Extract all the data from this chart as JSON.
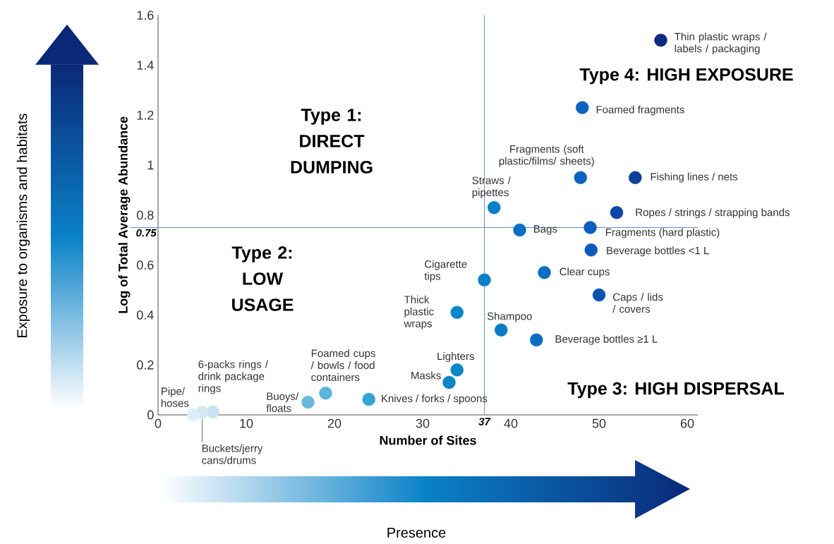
{
  "chart_data": {
    "type": "scatter",
    "xlabel": "Number of Sites",
    "ylabel": "Log of Total Average Abundance",
    "x": [
      57,
      48.1,
      47.9,
      54.1,
      52,
      38.1,
      41,
      49,
      49.1,
      43.8,
      37,
      50,
      33.9,
      38.9,
      42.9,
      33.9,
      33,
      23.9,
      19,
      17,
      6.2,
      5,
      4
    ],
    "values": [
      1.5,
      1.23,
      0.95,
      0.95,
      0.81,
      0.83,
      0.74,
      0.75,
      0.66,
      0.57,
      0.54,
      0.48,
      0.41,
      0.34,
      0.3,
      0.18,
      0.13,
      0.062,
      0.087,
      0.051,
      0.012,
      0.01,
      0.0
    ],
    "colors": [
      "#0c2a80",
      "#0a64c0",
      "#0a64c0",
      "#0b3f9a",
      "#0b47a6",
      "#0b7fc8",
      "#0a6fc4",
      "#0a60bc",
      "#0a5cbc",
      "#0a6fc6",
      "#0a80c8",
      "#0a52b0",
      "#0b86c8",
      "#0a7cc6",
      "#0a6cc2",
      "#0b86c8",
      "#0b86c8",
      "#35a3d4",
      "#5db3dc",
      "#6cb8dd",
      "#c8e1f0",
      "#d3e8f3",
      "#dceef7"
    ],
    "marker": "circle",
    "xlim": [
      0,
      61.2
    ],
    "ylim": [
      0,
      1.6
    ],
    "xticks": [
      0,
      10,
      20,
      30,
      40,
      50,
      60
    ],
    "yticks": [
      0,
      0.2,
      0.4,
      0.6,
      0.8,
      1,
      1.2,
      1.4,
      1.6
    ],
    "ref_lines": [
      {
        "axis": "y",
        "value": 0.75,
        "label": "0.75",
        "color": "#4472c4"
      },
      {
        "axis": "x",
        "value": 37,
        "label": "37",
        "color": "#4472c4"
      }
    ],
    "annotations": [
      {
        "text": "Thin plastic wraps / labels / packaging",
        "x": 57,
        "y": 1.5
      },
      {
        "text": "Foamed fragments",
        "x": 48.1,
        "y": 1.23
      },
      {
        "text": "Fragments (soft plastic/films/ sheets)",
        "x": 47.9,
        "y": 0.95
      },
      {
        "text": "Fishing lines / nets",
        "x": 54.1,
        "y": 0.95
      },
      {
        "text": "Ropes / strings / strapping bands",
        "x": 52,
        "y": 0.81
      },
      {
        "text": "Straws / pipettes",
        "x": 38.1,
        "y": 0.83
      },
      {
        "text": "Bags",
        "x": 41,
        "y": 0.74
      },
      {
        "text": "Fragments (hard plastic)",
        "x": 49,
        "y": 0.75
      },
      {
        "text": "Beverage bottles <1 L",
        "x": 49.1,
        "y": 0.66
      },
      {
        "text": "Clear cups",
        "x": 43.8,
        "y": 0.57
      },
      {
        "text": "Cigarette tips",
        "x": 37,
        "y": 0.54
      },
      {
        "text": "Caps / lids / covers",
        "x": 50,
        "y": 0.48
      },
      {
        "text": "Thick plastic wraps",
        "x": 33.9,
        "y": 0.41
      },
      {
        "text": "Shampoo",
        "x": 38.9,
        "y": 0.34
      },
      {
        "text": "Beverage bottles ≥1 L",
        "x": 42.9,
        "y": 0.3
      },
      {
        "text": "Lighters",
        "x": 33.9,
        "y": 0.18
      },
      {
        "text": "Masks",
        "x": 33,
        "y": 0.13
      },
      {
        "text": "Knives / forks / spoons",
        "x": 23.9,
        "y": 0.062
      },
      {
        "text": "Foamed cups / bowls / food containers",
        "x": 19,
        "y": 0.087
      },
      {
        "text": "Buoys/ floats",
        "x": 17,
        "y": 0.051
      },
      {
        "text": "6-packs rings / drink package rings",
        "x": 6.2,
        "y": 0.012
      },
      {
        "text": "Buckets/jerry cans/drums",
        "x": 5,
        "y": 0.01
      },
      {
        "text": "Pipe/ hoses",
        "x": 4,
        "y": 0.0
      },
      "Type 1: DIRECT DUMPING",
      "Type 2: LOW USAGE",
      "Type 3: HIGH DISPERSAL",
      "Type 4: HIGH EXPOSURE",
      "Exposure to organisms and habitats",
      "Presence"
    ]
  }
}
